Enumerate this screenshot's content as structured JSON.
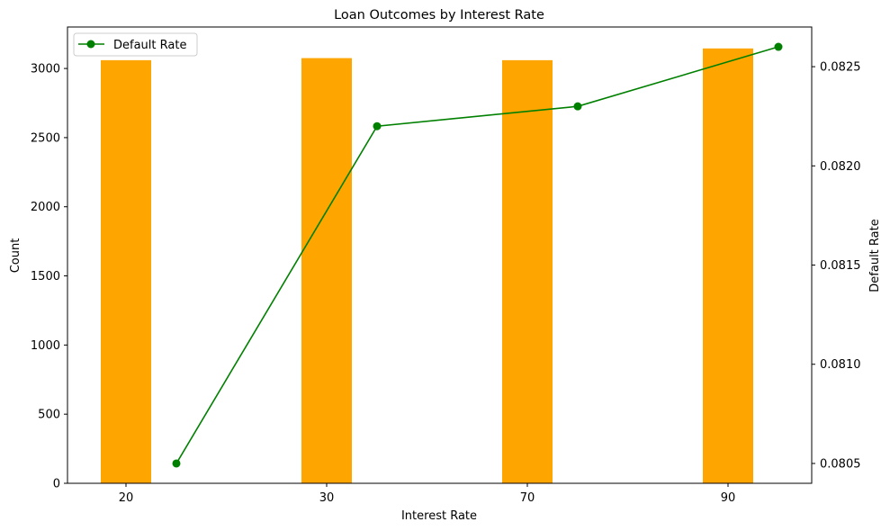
{
  "chart_data": {
    "type": "bar+line",
    "title": "Loan Outcomes by Interest Rate",
    "xlabel": "Interest Rate",
    "ylabel_left": "Count",
    "ylabel_right": "Default Rate",
    "categories": [
      "20",
      "30",
      "70",
      "90"
    ],
    "bar_series": {
      "name": "Count",
      "values": [
        3060,
        3075,
        3060,
        3145
      ],
      "color": "#ffa500"
    },
    "line_series": {
      "name": "Default Rate",
      "values": [
        0.0805,
        0.0822,
        0.0823,
        0.0826
      ],
      "color": "#008000"
    },
    "ylim_left": [
      0,
      3300
    ],
    "ylim_right": [
      0.0804,
      0.0827
    ],
    "yticks_left": [
      0,
      500,
      1000,
      1500,
      2000,
      2500,
      3000
    ],
    "yticks_right": [
      "0.0805",
      "0.0810",
      "0.0815",
      "0.0820",
      "0.0825"
    ],
    "legend": {
      "label": "Default Rate",
      "placement": "top-left"
    }
  }
}
